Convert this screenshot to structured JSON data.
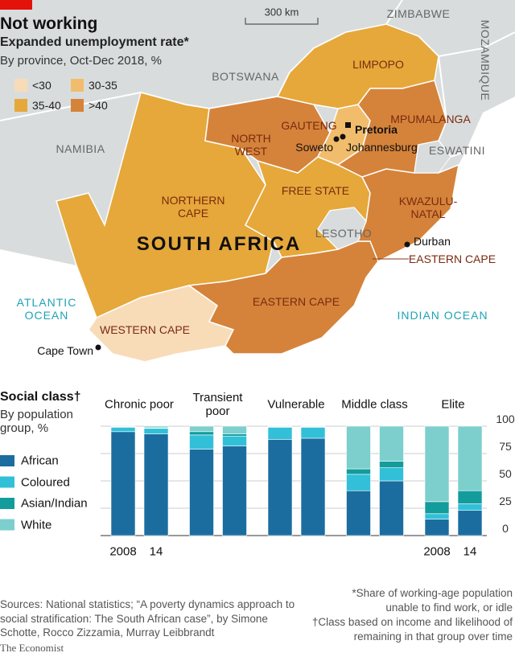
{
  "title": "Not working",
  "map": {
    "subtitle": "Expanded unemployment rate*",
    "note": "By province, Oct-Dec 2018, %",
    "scale": "300 km",
    "legend": [
      {
        "label": "<30",
        "color": "#f8dcb8"
      },
      {
        "label": "30-35",
        "color": "#f1bd6c"
      },
      {
        "label": "35-40",
        "color": "#e6a83a"
      },
      {
        "label": ">40",
        "color": "#d5833a"
      }
    ],
    "countries": [
      "ZIMBABWE",
      "BOTSWANA",
      "NAMIBIA",
      "MOZAMBIQUE",
      "ESWATINI",
      "LESOTHO"
    ],
    "oceans": [
      "ATLANTIC OCEAN",
      "INDIAN OCEAN"
    ],
    "country": "SOUTH AFRICA",
    "provinces": [
      {
        "name": "NORTHERN CAPE",
        "color": "#e6a83a"
      },
      {
        "name": "WESTERN CAPE",
        "color": "#f8dcb8"
      },
      {
        "name": "EASTERN CAPE",
        "color": "#d5833a"
      },
      {
        "name": "FREE STATE",
        "color": "#e6a83a"
      },
      {
        "name": "KWAZULU-NATAL",
        "color": "#d5833a"
      },
      {
        "name": "NORTH WEST",
        "color": "#d5833a"
      },
      {
        "name": "GAUTENG",
        "color": "#f1bd6c"
      },
      {
        "name": "LIMPOPO",
        "color": "#e6a83a"
      },
      {
        "name": "MPUMALANGA",
        "color": "#d5833a"
      }
    ],
    "enclave_label": "EASTERN CAPE",
    "cities": [
      "Pretoria",
      "Soweto",
      "Johannesburg",
      "Durban",
      "Cape Town"
    ]
  },
  "chart_data": {
    "type": "bar",
    "stacked": true,
    "title": "Social class†",
    "subtitle": "By population group, %",
    "groups": [
      "Chronic poor",
      "Transient poor",
      "Vulnerable",
      "Middle class",
      "Elite"
    ],
    "categories": [
      "2008",
      "14",
      null,
      null,
      null,
      null,
      null,
      null,
      "2008",
      "14"
    ],
    "series": [
      {
        "name": "African",
        "color": "#1b6d9f",
        "values": [
          95,
          93,
          79,
          82,
          88,
          89,
          41,
          50,
          15,
          23
        ]
      },
      {
        "name": "Coloured",
        "color": "#32c0d8",
        "values": [
          4,
          5,
          13,
          9,
          11,
          10,
          15,
          12,
          5,
          6
        ]
      },
      {
        "name": "Asian/Indian",
        "color": "#139c9c",
        "values": [
          0.5,
          0.5,
          3,
          2,
          0.5,
          0.5,
          5,
          6,
          11,
          12
        ]
      },
      {
        "name": "White",
        "color": "#7ccfcd",
        "values": [
          0.5,
          1.5,
          5,
          7,
          0.5,
          0.5,
          39,
          32,
          69,
          59
        ]
      }
    ],
    "ylim": [
      0,
      100
    ],
    "yticks": [
      0,
      25,
      50,
      75,
      100
    ],
    "grid": true
  },
  "sources": "Sources: National statistics; “A poverty dynamics approach to social stratification: The South African case”, by Simone Schotte, Rocco Zizzamia, Murray Leibbrandt",
  "notes": [
    "*Share of working-age population unable to find work, or idle",
    "†Class based on income and likelihood of remaining in that group over time"
  ],
  "brand": "The Economist"
}
